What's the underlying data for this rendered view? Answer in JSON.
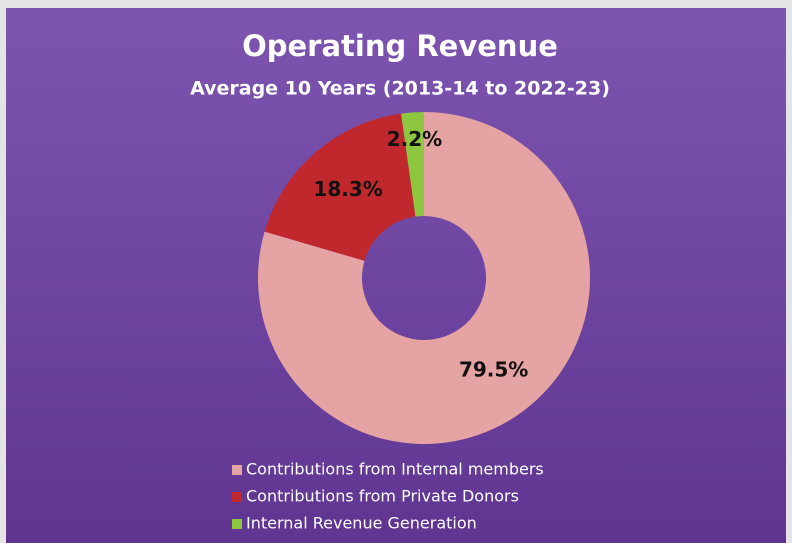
{
  "chart_data": {
    "type": "donut",
    "title": "Operating Revenue",
    "subtitle": "Average 10 Years (2013-14 to 2022-23)",
    "categories": [
      "Contributions from Internal members",
      "Contributions from Private Donors",
      "Internal Revenue Generation"
    ],
    "values": [
      79.5,
      18.3,
      2.2
    ],
    "value_labels": [
      "79.5%",
      "18.3%",
      "2.2%"
    ],
    "colors": [
      "#e6a3a3",
      "#c1282e",
      "#8dc63f"
    ],
    "legend": "bottom"
  }
}
